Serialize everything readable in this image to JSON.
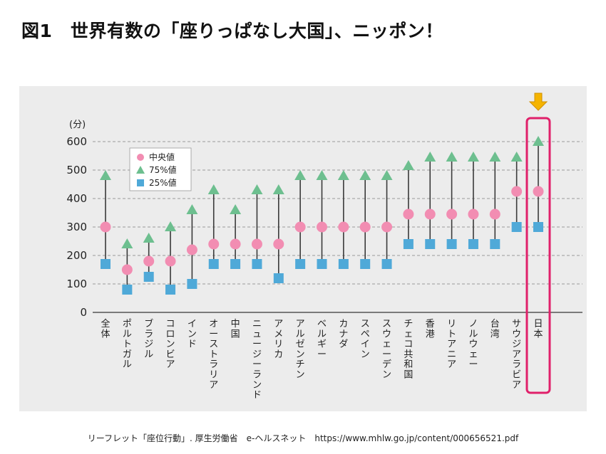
{
  "title": "図1　世界有数の「座りっぱなし大国」、ニッポン！",
  "source": "リーフレット「座位行動」. 厚生労働省　e-ヘルスネット　https://www.mhlw.go.jp/content/000656521.pdf",
  "colors": {
    "median": "#f28db2",
    "p75": "#6dbf8f",
    "p25": "#4fa9d8",
    "highlight": "#e0206a",
    "arrow": "#f5b400",
    "panel": "#ececec"
  },
  "icons": {
    "highlight_marker": "down-arrow-icon"
  },
  "chart_data": {
    "type": "scatter",
    "title": "図1　世界有数の「座りっぱなし大国」、ニッポン！",
    "ylabel": "(分)",
    "ylim": [
      0,
      600
    ],
    "yticks": [
      0,
      100,
      200,
      300,
      400,
      500,
      600
    ],
    "grid": true,
    "legend_position": "top-left",
    "highlighted_category": "日本",
    "categories": [
      "全体",
      "ポルトガル",
      "ブラジル",
      "コロンビア",
      "インド",
      "オーストラリア",
      "中国",
      "ニュージーランド",
      "アメリカ",
      "アルゼンチン",
      "ベルギー",
      "カナダ",
      "スペイン",
      "スウェーデン",
      "チェコ共和国",
      "香港",
      "リトアニア",
      "ノルウェー",
      "台湾",
      "サウジアラビア",
      "日本"
    ],
    "series": [
      {
        "name": "75%値",
        "marker": "triangle",
        "values": [
          480,
          240,
          260,
          300,
          360,
          430,
          360,
          430,
          430,
          480,
          480,
          480,
          480,
          480,
          515,
          545,
          545,
          545,
          545,
          545,
          600
        ]
      },
      {
        "name": "中央値",
        "marker": "circle",
        "values": [
          300,
          150,
          180,
          180,
          220,
          240,
          240,
          240,
          240,
          300,
          300,
          300,
          300,
          300,
          345,
          345,
          345,
          345,
          345,
          425,
          425
        ]
      },
      {
        "name": "25%値",
        "marker": "square",
        "values": [
          170,
          80,
          125,
          80,
          100,
          170,
          170,
          170,
          120,
          170,
          170,
          170,
          170,
          170,
          240,
          240,
          240,
          240,
          240,
          300,
          300
        ]
      }
    ],
    "legend": [
      "中央値",
      "75%値",
      "25%値"
    ]
  }
}
